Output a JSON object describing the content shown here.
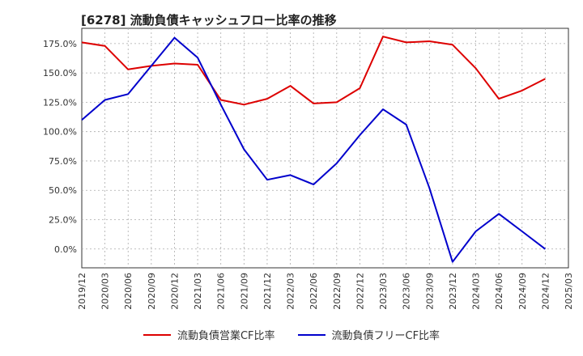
{
  "chart_data": {
    "type": "line",
    "title": "[6278]  流動負債キャッシュフロー比率の推移",
    "xlabel": "",
    "ylabel": "",
    "ylim": [
      -16,
      188
    ],
    "yticks": [
      0,
      25,
      50,
      75,
      100,
      125,
      150,
      175
    ],
    "ytick_labels": [
      "0.0%",
      "25.0%",
      "50.0%",
      "75.0%",
      "100.0%",
      "125.0%",
      "150.0%",
      "175.0%"
    ],
    "xticks": [
      "2019/12",
      "2020/03",
      "2020/06",
      "2020/09",
      "2020/12",
      "2021/03",
      "2021/06",
      "2021/09",
      "2021/12",
      "2022/03",
      "2022/06",
      "2022/09",
      "2022/12",
      "2023/03",
      "2023/06",
      "2023/09",
      "2023/12",
      "2024/03",
      "2024/06",
      "2024/09",
      "2024/12",
      "2025/03"
    ],
    "grid": true,
    "series": [
      {
        "name": "流動負債営業CF比率",
        "color": "#dd0000",
        "points": [
          [
            "2019/12",
            176
          ],
          [
            "2020/03",
            173
          ],
          [
            "2020/06",
            153
          ],
          [
            "2020/09",
            156
          ],
          [
            "2020/12",
            158
          ],
          [
            "2021/03",
            157
          ],
          [
            "2021/06",
            127
          ],
          [
            "2021/09",
            123
          ],
          [
            "2021/12",
            128
          ],
          [
            "2022/03",
            139
          ],
          [
            "2022/06",
            124
          ],
          [
            "2022/09",
            125
          ],
          [
            "2022/12",
            137
          ],
          [
            "2023/03",
            181
          ],
          [
            "2023/06",
            176
          ],
          [
            "2023/09",
            177
          ],
          [
            "2023/12",
            174
          ],
          [
            "2024/03",
            154
          ],
          [
            "2024/06",
            128
          ],
          [
            "2024/09",
            135
          ],
          [
            "2024/12",
            145
          ]
        ]
      },
      {
        "name": "流動負債フリーCF比率",
        "color": "#0000cc",
        "points": [
          [
            "2019/12",
            110
          ],
          [
            "2020/03",
            127
          ],
          [
            "2020/06",
            132
          ],
          [
            "2020/09",
            156
          ],
          [
            "2020/12",
            180
          ],
          [
            "2021/03",
            163
          ],
          [
            "2021/06",
            123
          ],
          [
            "2021/09",
            85
          ],
          [
            "2021/12",
            59
          ],
          [
            "2022/03",
            63
          ],
          [
            "2022/06",
            55
          ],
          [
            "2022/09",
            73
          ],
          [
            "2022/12",
            97
          ],
          [
            "2023/03",
            119
          ],
          [
            "2023/06",
            106
          ],
          [
            "2023/09",
            52
          ],
          [
            "2023/12",
            -11
          ],
          [
            "2024/03",
            15
          ],
          [
            "2024/06",
            30
          ],
          [
            "2024/09",
            15
          ],
          [
            "2024/12",
            0
          ]
        ]
      }
    ],
    "legend_position": "bottom"
  }
}
